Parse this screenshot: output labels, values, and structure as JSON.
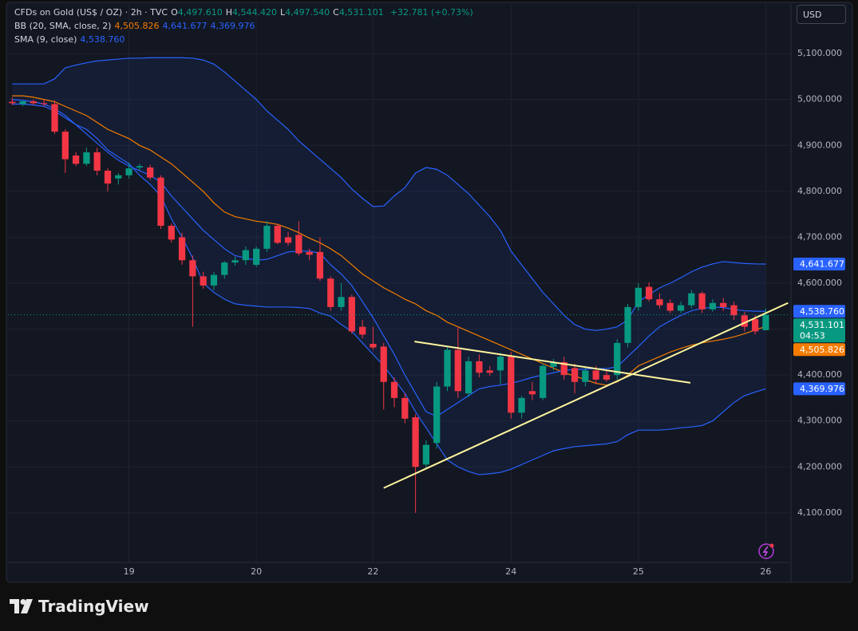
{
  "chart_data": {
    "type": "candlestick",
    "legend": {
      "title": "CFDs on Gold (US$ / OZ) · 2h · TVC",
      "ohlc": [
        {
          "key": "O",
          "value": "4,497.610"
        },
        {
          "key": "H",
          "value": "4,544.420"
        },
        {
          "key": "L",
          "value": "4,497.540"
        },
        {
          "key": "C",
          "value": "4,531.101"
        }
      ],
      "change": "+32.781 (+0.73%)",
      "color": "#089981"
    },
    "series": [
      {
        "up_color": "#089981",
        "down_color": "#f23645",
        "open": [
          4995,
          4990,
          4996,
          4992,
          4990,
          4930,
          4878,
          4860,
          4885,
          4845,
          4828,
          4835,
          4852,
          4852,
          4830,
          4725,
          4700,
          4650,
          4615,
          4595,
          4618,
          4645,
          4650,
          4640,
          4675,
          4725,
          4700,
          4705,
          4668,
          4668,
          4610,
          4548,
          4570,
          4505,
          4468,
          4462,
          4385,
          4350,
          4308,
          4205,
          4252,
          4375,
          4455,
          4360,
          4430,
          4410,
          4410,
          4440,
          4318,
          4365,
          4350,
          4418,
          4428,
          4415,
          4385,
          4410,
          4400,
          4400,
          4470,
          4548,
          4592,
          4565,
          4557,
          4540,
          4552,
          4578,
          4543,
          4557,
          4552,
          4530,
          4522,
          4497.61
        ],
        "high": [
          5005,
          4998,
          5000,
          5000,
          4998,
          4935,
          4885,
          4895,
          4895,
          4850,
          4840,
          4862,
          4860,
          4858,
          4835,
          4730,
          4710,
          4660,
          4625,
          4625,
          4648,
          4658,
          4680,
          4680,
          4735,
          4730,
          4712,
          4735,
          4675,
          4700,
          4615,
          4600,
          4575,
          4520,
          4505,
          4470,
          4395,
          4360,
          4315,
          4258,
          4385,
          4462,
          4505,
          4440,
          4445,
          4420,
          4448,
          4450,
          4355,
          4385,
          4425,
          4435,
          4440,
          4425,
          4420,
          4420,
          4410,
          4478,
          4555,
          4600,
          4602,
          4578,
          4565,
          4560,
          4585,
          4582,
          4565,
          4568,
          4560,
          4538,
          4530,
          4544.42
        ],
        "low": [
          4988,
          4985,
          4988,
          4985,
          4925,
          4840,
          4855,
          4855,
          4835,
          4800,
          4815,
          4828,
          4845,
          4825,
          4718,
          4688,
          4640,
          4505,
          4588,
          4585,
          4610,
          4638,
          4640,
          4635,
          4668,
          4685,
          4682,
          4660,
          4650,
          4605,
          4540,
          4540,
          4490,
          4480,
          4455,
          4325,
          4330,
          4295,
          4100,
          4195,
          4240,
          4365,
          4350,
          4352,
          4395,
          4398,
          4380,
          4305,
          4305,
          4345,
          4345,
          4410,
          4390,
          4360,
          4375,
          4380,
          4385,
          4390,
          4460,
          4540,
          4560,
          4545,
          4535,
          4535,
          4545,
          4535,
          4538,
          4540,
          4520,
          4495,
          4488,
          4497.54
        ],
        "close": [
          4992,
          4996,
          4992,
          4990,
          4930,
          4870,
          4860,
          4885,
          4845,
          4817,
          4835,
          4850,
          4855,
          4830,
          4725,
          4695,
          4650,
          4615,
          4595,
          4618,
          4645,
          4650,
          4672,
          4675,
          4725,
          4688,
          4688,
          4665,
          4662,
          4610,
          4548,
          4570,
          4495,
          4488,
          4460,
          4385,
          4350,
          4305,
          4200,
          4248,
          4375,
          4455,
          4365,
          4430,
          4405,
          4405,
          4440,
          4318,
          4350,
          4358,
          4420,
          4428,
          4400,
          4385,
          4410,
          4390,
          4390,
          4470,
          4548,
          4590,
          4565,
          4552,
          4540,
          4552,
          4578,
          4543,
          4557,
          4548,
          4530,
          4505,
          4495,
          4531.101
        ]
      }
    ],
    "indicators": {
      "bb": {
        "label": "BB (20, SMA, close, 2)",
        "legend_values": [
          {
            "text": "4,505.826",
            "color": "#f57c00"
          },
          {
            "text": "4,641.677",
            "color": "#2962ff"
          },
          {
            "text": "4,369.976",
            "color": "#2962ff"
          }
        ],
        "basis_color": "#f57c00",
        "band_color": "#2962ff",
        "basis": [
          5008,
          5008,
          5005,
          5000,
          4995,
          4985,
          4975,
          4965,
          4950,
          4935,
          4925,
          4915,
          4900,
          4890,
          4875,
          4860,
          4840,
          4820,
          4800,
          4775,
          4755,
          4745,
          4740,
          4735,
          4732,
          4728,
          4720,
          4710,
          4698,
          4688,
          4675,
          4660,
          4640,
          4620,
          4605,
          4590,
          4578,
          4565,
          4555,
          4540,
          4530,
          4515,
          4505,
          4495,
          4485,
          4475,
          4465,
          4455,
          4445,
          4435,
          4425,
          4415,
          4405,
          4398,
          4390,
          4382,
          4378,
          4385,
          4400,
          4420,
          4430,
          4440,
          4450,
          4458,
          4465,
          4470,
          4474,
          4478,
          4483,
          4490,
          4498,
          4505.826
        ],
        "upper": [
          5034,
          5034,
          5034,
          5034,
          5045,
          5069,
          5075,
          5080,
          5084,
          5086,
          5088,
          5090,
          5090,
          5091,
          5091,
          5091,
          5091,
          5090,
          5086,
          5077,
          5060,
          5040,
          5020,
          5000,
          4975,
          4955,
          4935,
          4910,
          4890,
          4870,
          4850,
          4830,
          4805,
          4785,
          4767,
          4768,
          4790,
          4808,
          4840,
          4852,
          4848,
          4835,
          4815,
          4795,
          4770,
          4745,
          4715,
          4670,
          4640,
          4610,
          4580,
          4555,
          4530,
          4510,
          4500,
          4497,
          4500,
          4505,
          4520,
          4560,
          4575,
          4590,
          4600,
          4612,
          4625,
          4635,
          4642,
          4647,
          4645,
          4643,
          4642,
          4641.677
        ],
        "lower": [
          4990,
          4990,
          4988,
          4985,
          4975,
          4960,
          4945,
          4935,
          4915,
          4890,
          4875,
          4860,
          4835,
          4815,
          4790,
          4740,
          4700,
          4655,
          4600,
          4580,
          4565,
          4555,
          4552,
          4550,
          4548,
          4548,
          4548,
          4547,
          4545,
          4535,
          4528,
          4510,
          4495,
          4470,
          4445,
          4420,
          4390,
          4360,
          4320,
          4285,
          4250,
          4215,
          4200,
          4190,
          4183,
          4185,
          4188,
          4195,
          4205,
          4215,
          4225,
          4235,
          4240,
          4244,
          4246,
          4248,
          4250,
          4255,
          4270,
          4280,
          4280,
          4280,
          4282,
          4285,
          4287,
          4290,
          4300,
          4320,
          4340,
          4355,
          4363,
          4369.976
        ]
      },
      "sma": {
        "label": "SMA (9, close)",
        "legend_value": "4,538.760",
        "color": "#2962ff",
        "values": [
          5000,
          4998,
          4995,
          4990,
          4980,
          4965,
          4945,
          4925,
          4905,
          4885,
          4868,
          4855,
          4845,
          4835,
          4820,
          4790,
          4765,
          4740,
          4715,
          4695,
          4675,
          4660,
          4655,
          4650,
          4652,
          4660,
          4668,
          4670,
          4670,
          4665,
          4640,
          4620,
          4595,
          4560,
          4525,
          4485,
          4445,
          4400,
          4360,
          4320,
          4310,
          4325,
          4340,
          4355,
          4370,
          4375,
          4378,
          4382,
          4388,
          4395,
          4400,
          4405,
          4410,
          4412,
          4413,
          4414,
          4414,
          4418,
          4440,
          4462,
          4485,
          4505,
          4518,
          4530,
          4540,
          4545,
          4548,
          4547,
          4543,
          4540,
          4539,
          4538.76
        ]
      }
    },
    "drawings": [
      {
        "color": "#fff59d",
        "points": [
          [
            35.0,
            4154
          ],
          [
            73.1,
            4557
          ]
        ]
      },
      {
        "color": "#fff59d",
        "points": [
          [
            37.9,
            4473
          ],
          [
            63.9,
            4383
          ]
        ]
      }
    ],
    "xlim": [
      -0.4,
      73.3
    ],
    "xticks": [
      {
        "value": 11,
        "label": "19"
      },
      {
        "value": 23,
        "label": "20"
      },
      {
        "value": 34,
        "label": "22"
      },
      {
        "value": 47,
        "label": "24"
      },
      {
        "value": 59,
        "label": "25"
      },
      {
        "value": 71,
        "label": "26"
      }
    ],
    "ylim": [
      3992,
      5208
    ],
    "yticks": [
      {
        "value": 4100,
        "label": "4,100.000"
      },
      {
        "value": 4200,
        "label": "4,200.000"
      },
      {
        "value": 4300,
        "label": "4,300.000"
      },
      {
        "value": 4400,
        "label": "4,400.000"
      },
      {
        "value": 4500,
        "label": "4,500.000"
      },
      {
        "value": 4600,
        "label": "4,600.000"
      },
      {
        "value": 4700,
        "label": "4,700.000"
      },
      {
        "value": 4800,
        "label": "4,800.000"
      },
      {
        "value": 4900,
        "label": "4,900.000"
      },
      {
        "value": 5000,
        "label": "5,000.000"
      },
      {
        "value": 5100,
        "label": "5,100.000"
      }
    ],
    "grid": true,
    "price_labels": [
      {
        "value": 4641.677,
        "label": "4,641.677",
        "color": "#2962ff"
      },
      {
        "value": 4538.76,
        "label": "4,538.760",
        "color": "#2962ff"
      },
      {
        "value": 4531.101,
        "label": "4,531.101",
        "color": "#089981",
        "sub": "04:53"
      },
      {
        "value": 4505.826,
        "label": "4,505.826",
        "color": "#f57c00"
      },
      {
        "value": 4369.976,
        "label": "4,369.976",
        "color": "#2962ff"
      }
    ]
  },
  "ui": {
    "currency": "USD",
    "brand": "TradingView"
  }
}
